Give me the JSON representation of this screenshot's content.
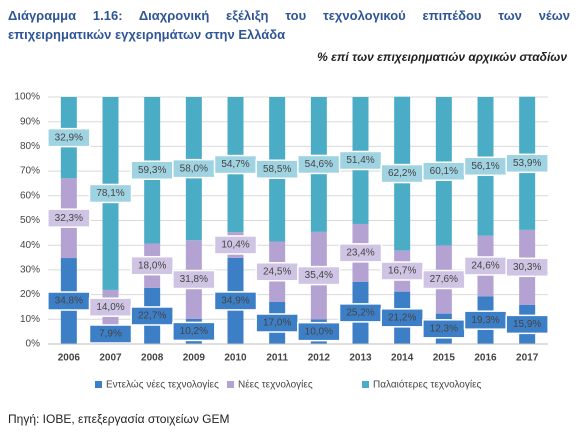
{
  "chart_data": {
    "type": "stacked-bar",
    "title": "Διάγραμμα 1.16: Διαχρονική εξέλιξη του τεχνολογικού επιπέδου των νέων επιχειρηματικών εγχειρημάτων στην Ελλάδα",
    "subtitle": "% επί των επιχειρηματιών αρχικών σταδίων",
    "source": "Πηγή: ΙΟΒΕ, επεξεργασία στοιχείων GEM",
    "categories": [
      "2006",
      "2007",
      "2008",
      "2009",
      "2010",
      "2011",
      "2012",
      "2013",
      "2014",
      "2015",
      "2016",
      "2017"
    ],
    "series": [
      {
        "name": "Εντελώς νέες τεχνολογίες",
        "color": "#3d7fc6",
        "values": [
          34.8,
          7.9,
          22.7,
          10.2,
          34.9,
          17.0,
          10.0,
          25.2,
          21.2,
          12.3,
          19.3,
          15.9
        ],
        "value_labels": [
          "34,8%",
          "7,9%",
          "22,7%",
          "10,2%",
          "34,9%",
          "17,0%",
          "10,0%",
          "25,2%",
          "21,2%",
          "12,3%",
          "19,3%",
          "15,9%"
        ]
      },
      {
        "name": "Νέες τεχνολογίες",
        "color": "#b3a2d2",
        "values": [
          32.3,
          14.0,
          18.0,
          31.8,
          10.4,
          24.5,
          35.4,
          23.4,
          16.7,
          27.6,
          24.6,
          30.3
        ],
        "value_labels": [
          "32,3%",
          "14,0%",
          "18,0%",
          "31,8%",
          "10,4%",
          "24,5%",
          "35,4%",
          "23,4%",
          "16,7%",
          "27,6%",
          "24,6%",
          "30,3%"
        ]
      },
      {
        "name": "Παλαιότερες τεχνολογίες",
        "color": "#4bacc6",
        "values": [
          32.9,
          78.1,
          59.3,
          58.0,
          54.7,
          58.5,
          54.6,
          51.4,
          62.2,
          60.1,
          56.1,
          53.9
        ],
        "value_labels": [
          "32,9%",
          "78,1%",
          "59,3%",
          "58,0%",
          "54,7%",
          "58,5%",
          "54,6%",
          "51,4%",
          "62,2%",
          "60,1%",
          "56,1%",
          "53,9%"
        ]
      }
    ],
    "ylim": [
      0,
      100
    ],
    "yticks": [
      {
        "value": 0,
        "label": "0%"
      },
      {
        "value": 10,
        "label": "10%"
      },
      {
        "value": 20,
        "label": "20%"
      },
      {
        "value": 30,
        "label": "30%"
      },
      {
        "value": 40,
        "label": "40%"
      },
      {
        "value": 50,
        "label": "50%"
      },
      {
        "value": 60,
        "label": "60%"
      },
      {
        "value": 70,
        "label": "70%"
      },
      {
        "value": 80,
        "label": "80%"
      },
      {
        "value": 90,
        "label": "90%"
      },
      {
        "value": 100,
        "label": "100%"
      }
    ],
    "grid": true,
    "legend": "bottom"
  }
}
